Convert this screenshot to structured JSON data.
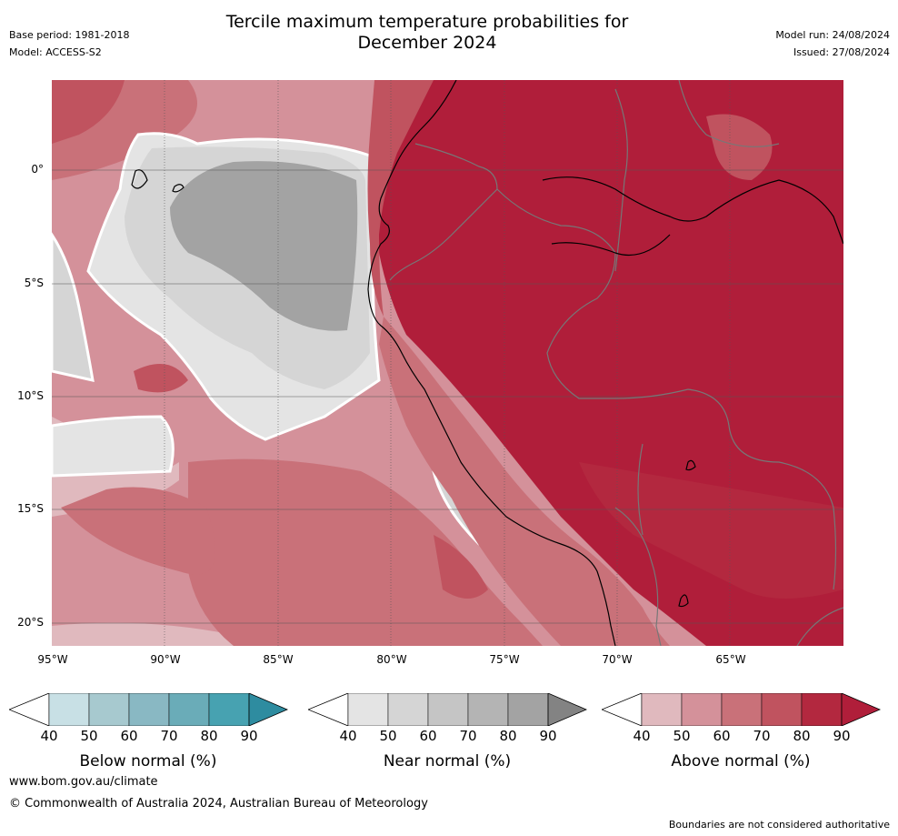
{
  "header": {
    "title_line1": "Tercile maximum temperature probabilities for",
    "title_line2": "December 2024",
    "base_period": "Base period: 1981-2018",
    "model": "Model: ACCESS-S2",
    "model_run": "Model run: 24/08/2024",
    "issued": "Issued: 27/08/2024"
  },
  "map": {
    "lat_labels": [
      "0°",
      "5°S",
      "10°S",
      "15°S",
      "20°S"
    ],
    "lon_labels": [
      "95°W",
      "90°W",
      "85°W",
      "80°W",
      "75°W",
      "70°W",
      "65°W"
    ],
    "colors": {
      "above": [
        "#e0b9be",
        "#d4919a",
        "#c97179",
        "#c0535f",
        "#b3283f",
        "#b01e3a"
      ],
      "near": [
        "#e4e4e4",
        "#d5d5d5",
        "#c5c5c5",
        "#b4b4b4",
        "#a3a3a3",
        "#838383"
      ],
      "below": [
        "#c8e0e5",
        "#a7c9cf",
        "#89b8c3",
        "#6aacb8",
        "#47a2b1",
        "#2e8ca0"
      ]
    }
  },
  "colorbars": {
    "ticks": [
      "40",
      "50",
      "60",
      "70",
      "80",
      "90"
    ],
    "below_label": "Below normal (%)",
    "near_label": "Near normal (%)",
    "above_label": "Above normal (%)"
  },
  "footer": {
    "url": "www.bom.gov.au/climate",
    "copyright": "© Commonwealth of Australia 2024, Australian Bureau of Meteorology",
    "disclaimer": "Boundaries are not considered authoritative"
  }
}
